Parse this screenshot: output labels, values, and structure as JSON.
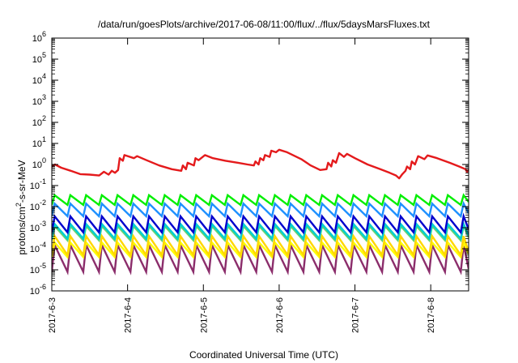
{
  "chart_data": {
    "type": "line",
    "title": "/data/run/goesPlots/archive/2017-06-08/11:00/flux/../flux/5daysMarsFluxes.txt",
    "xlabel": "Coordinated Universal Time (UTC)",
    "ylabel_main": "protons/cm",
    "ylabel_sup": "2",
    "ylabel_tail": "-s-sr-MeV",
    "yscale": "log",
    "ylim_exp": [
      -6,
      6
    ],
    "y_ticks": [
      {
        "base": "10",
        "exp": "-6"
      },
      {
        "base": "10",
        "exp": "-5"
      },
      {
        "base": "10",
        "exp": "-4"
      },
      {
        "base": "10",
        "exp": "-3"
      },
      {
        "base": "10",
        "exp": "-2"
      },
      {
        "base": "10",
        "exp": "-1"
      },
      {
        "base": "10",
        "exp": "0"
      },
      {
        "base": "10",
        "exp": "1"
      },
      {
        "base": "10",
        "exp": "2"
      },
      {
        "base": "10",
        "exp": "3"
      },
      {
        "base": "10",
        "exp": "4"
      },
      {
        "base": "10",
        "exp": "5"
      },
      {
        "base": "10",
        "exp": "6"
      }
    ],
    "x_start": "2017-6-3",
    "x_end": "2017-6-8 12:00",
    "x_ticks": [
      "2017-6-3",
      "2017-6-4",
      "2017-6-5",
      "2017-6-6",
      "2017-6-7",
      "2017-6-8"
    ],
    "grid": false,
    "legend": "none",
    "series": [
      {
        "color": "#e41a1c",
        "points": [
          [
            "2017-6-3 00:00",
            0.8
          ],
          [
            "2017-6-3 01:00",
            1.0
          ],
          [
            "2017-6-3 03:00",
            0.7
          ],
          [
            "2017-6-3 06:00",
            0.5
          ],
          [
            "2017-6-3 09:00",
            0.35
          ],
          [
            "2017-6-3 12:00",
            0.33
          ],
          [
            "2017-6-3 15:00",
            0.3
          ],
          [
            "2017-6-3 16:30",
            0.45
          ],
          [
            "2017-6-3 18:00",
            0.33
          ],
          [
            "2017-6-3 19:00",
            0.5
          ],
          [
            "2017-6-3 20:00",
            0.4
          ],
          [
            "2017-6-3 21:00",
            0.55
          ],
          [
            "2017-6-3 21:30",
            2.0
          ],
          [
            "2017-6-3 22:30",
            1.5
          ],
          [
            "2017-6-3 23:00",
            2.8
          ],
          [
            "2017-6-4 02:00",
            2.0
          ],
          [
            "2017-6-4 03:00",
            2.5
          ],
          [
            "2017-6-4 06:00",
            1.6
          ],
          [
            "2017-6-4 10:00",
            0.9
          ],
          [
            "2017-6-4 14:00",
            0.6
          ],
          [
            "2017-6-4 17:00",
            0.5
          ],
          [
            "2017-6-4 17:30",
            0.9
          ],
          [
            "2017-6-4 18:30",
            0.6
          ],
          [
            "2017-6-4 19:00",
            1.2
          ],
          [
            "2017-6-4 21:00",
            0.9
          ],
          [
            "2017-6-4 21:30",
            2.0
          ],
          [
            "2017-6-4 22:30",
            1.6
          ],
          [
            "2017-6-5 00:30",
            2.8
          ],
          [
            "2017-6-5 03:00",
            2.0
          ],
          [
            "2017-6-5 07:00",
            1.5
          ],
          [
            "2017-6-5 11:00",
            1.2
          ],
          [
            "2017-6-5 14:00",
            1.0
          ],
          [
            "2017-6-5 16:00",
            0.9
          ],
          [
            "2017-6-5 16:30",
            1.4
          ],
          [
            "2017-6-5 17:30",
            1.0
          ],
          [
            "2017-6-5 18:00",
            2.0
          ],
          [
            "2017-6-5 19:00",
            1.6
          ],
          [
            "2017-6-5 19:30",
            2.8
          ],
          [
            "2017-6-5 21:00",
            2.3
          ],
          [
            "2017-6-5 21:30",
            4.5
          ],
          [
            "2017-6-5 23:00",
            3.8
          ],
          [
            "2017-6-6 00:00",
            5.0
          ],
          [
            "2017-6-6 02:30",
            3.8
          ],
          [
            "2017-6-6 07:00",
            1.8
          ],
          [
            "2017-6-6 10:00",
            0.9
          ],
          [
            "2017-6-6 13:00",
            0.55
          ],
          [
            "2017-6-6 15:00",
            0.6
          ],
          [
            "2017-6-6 15:30",
            1.2
          ],
          [
            "2017-6-6 16:30",
            0.8
          ],
          [
            "2017-6-6 17:00",
            1.6
          ],
          [
            "2017-6-6 18:00",
            1.2
          ],
          [
            "2017-6-6 19:00",
            3.5
          ],
          [
            "2017-6-6 20:30",
            2.3
          ],
          [
            "2017-6-6 21:30",
            3.2
          ],
          [
            "2017-6-7 00:00",
            2.0
          ],
          [
            "2017-6-7 04:00",
            1.0
          ],
          [
            "2017-6-7 08:00",
            0.6
          ],
          [
            "2017-6-7 11:00",
            0.4
          ],
          [
            "2017-6-7 13:00",
            0.3
          ],
          [
            "2017-6-7 14:00",
            0.22
          ],
          [
            "2017-6-7 15:00",
            0.35
          ],
          [
            "2017-6-7 16:00",
            0.5
          ],
          [
            "2017-6-7 16:30",
            0.8
          ],
          [
            "2017-6-7 17:30",
            0.6
          ],
          [
            "2017-6-7 18:00",
            1.4
          ],
          [
            "2017-6-7 19:00",
            1.0
          ],
          [
            "2017-6-7 20:00",
            2.5
          ],
          [
            "2017-6-7 22:00",
            1.8
          ],
          [
            "2017-6-7 23:00",
            2.7
          ],
          [
            "2017-6-8 02:00",
            2.0
          ],
          [
            "2017-6-8 06:00",
            1.2
          ],
          [
            "2017-6-8 09:00",
            0.8
          ],
          [
            "2017-6-8 11:00",
            0.6
          ],
          [
            "2017-6-8 11:30",
            0.45
          ],
          [
            "2017-6-8 12:00",
            0.55
          ]
        ]
      }
    ],
    "sawtooth_series": [
      {
        "color": "#00ee00",
        "peak": 0.035,
        "trough": 0.012,
        "cycles": 26
      },
      {
        "color": "#1e90ff",
        "peak": 0.014,
        "trough": 0.0035,
        "cycles": 26
      },
      {
        "color": "#0000cd",
        "peak": 0.0035,
        "trough": 0.0006,
        "cycles": 26
      },
      {
        "color": "#00ced1",
        "peak": 0.0015,
        "trough": 0.0003,
        "cycles": 26
      },
      {
        "color": "#6bd46b",
        "peak": 0.0012,
        "trough": 0.00025,
        "cycles": 26
      },
      {
        "color": "#ffd700",
        "peak": 0.0004,
        "trough": 5e-05,
        "cycles": 26
      },
      {
        "color": "#ffff00",
        "peak": 0.0002,
        "trough": 4e-05,
        "cycles": 26
      },
      {
        "color": "#8b2d6b",
        "peak": 0.00015,
        "trough": 8e-06,
        "cycles": 26
      }
    ]
  }
}
